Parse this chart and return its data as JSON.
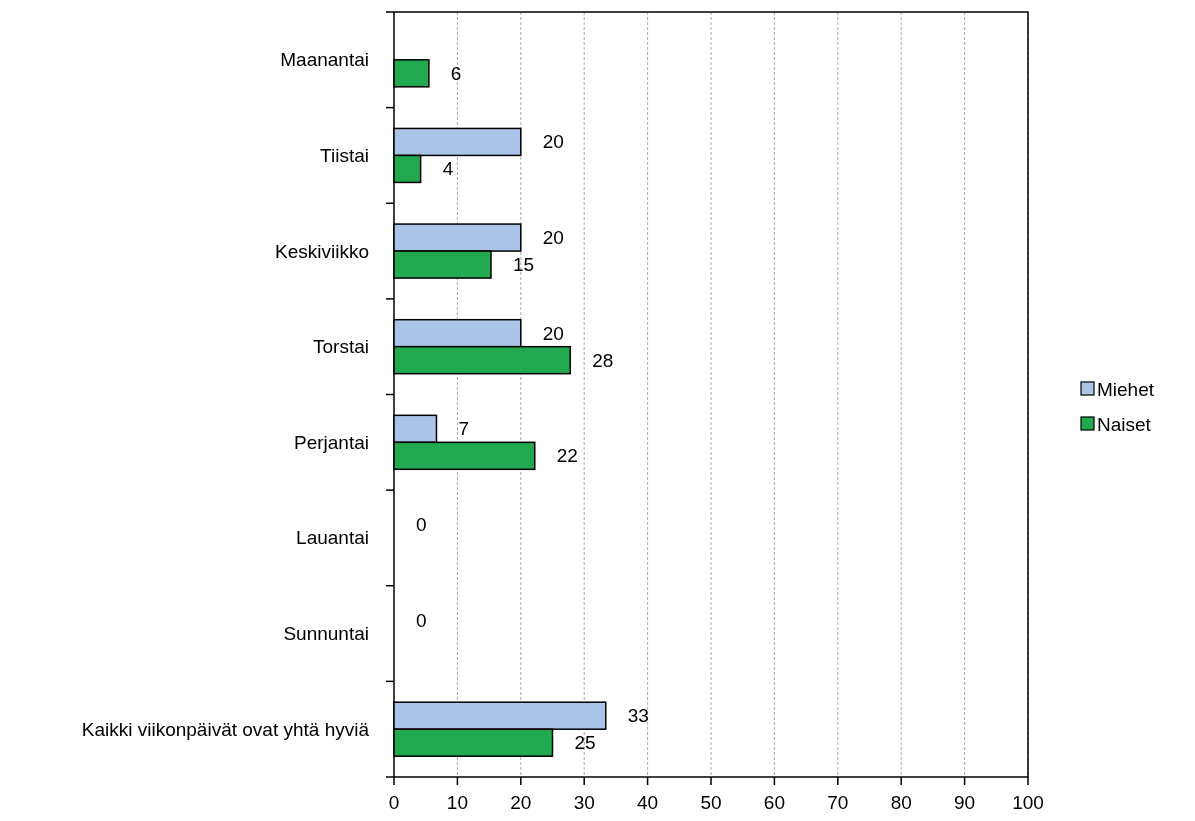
{
  "chart_data": {
    "type": "bar",
    "orientation": "horizontal",
    "categories": [
      "Maanantai",
      "Tiistai",
      "Keskiviikko",
      "Torstai",
      "Perjantai",
      "Lauantai",
      "Sunnuntai",
      "Kaikki viikonpäivät ovat yhtä hyviä"
    ],
    "series": [
      {
        "name": "Miehet",
        "color": "#a9c4e6",
        "values": [
          null,
          20,
          20,
          20,
          6.7,
          0,
          0,
          33.4
        ],
        "value_labels": [
          null,
          "20",
          "20",
          "20",
          "7",
          "0",
          "0",
          "33"
        ]
      },
      {
        "name": "Naiset",
        "color": "#22a84f",
        "values": [
          5.5,
          4.2,
          15.3,
          27.8,
          22.2,
          null,
          null,
          25
        ],
        "value_labels": [
          "6",
          "4",
          "15",
          "28",
          "22",
          null,
          null,
          "25"
        ]
      }
    ],
    "xlim": [
      0,
      100
    ],
    "xticks": [
      0,
      10,
      20,
      30,
      40,
      50,
      60,
      70,
      80,
      90,
      100
    ],
    "grid": "x",
    "legend": "right"
  }
}
